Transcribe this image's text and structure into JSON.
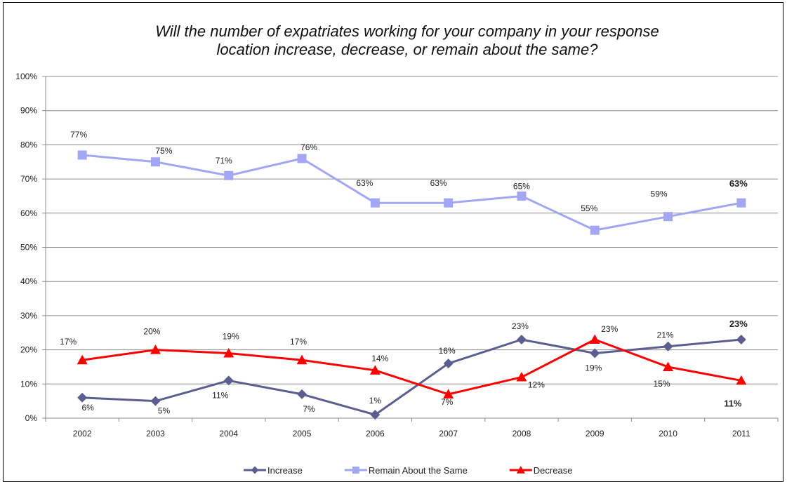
{
  "chart_data": {
    "type": "line",
    "title_line1": "Will the number of expatriates working for your company in your response",
    "title_line2": "location increase, decrease, or remain about the same?",
    "categories": [
      "2002",
      "2003",
      "2004",
      "2005",
      "2006",
      "2007",
      "2008",
      "2009",
      "2010",
      "2011"
    ],
    "y_ticks": [
      "0%",
      "10%",
      "20%",
      "30%",
      "40%",
      "50%",
      "60%",
      "70%",
      "80%",
      "90%",
      "100%"
    ],
    "ylim": [
      0,
      100
    ],
    "grid": true,
    "legend_position": "bottom",
    "series": [
      {
        "name": "Increase",
        "color": "#5b5f8f",
        "marker": "diamond",
        "values": [
          6,
          5,
          11,
          7,
          1,
          16,
          23,
          19,
          21,
          23
        ],
        "labels": [
          "6%",
          "5%",
          "11%",
          "7%",
          "1%",
          "16%",
          "23%",
          "19%",
          "21%",
          "23%"
        ]
      },
      {
        "name": "Remain About the Same",
        "color": "#a3a6f2",
        "marker": "square",
        "values": [
          77,
          75,
          71,
          76,
          63,
          63,
          65,
          55,
          59,
          63
        ],
        "labels": [
          "77%",
          "75%",
          "71%",
          "76%",
          "63%",
          "63%",
          "65%",
          "55%",
          "59%",
          "63%"
        ]
      },
      {
        "name": "Decrease",
        "color": "#ff0000",
        "marker": "triangle",
        "values": [
          17,
          20,
          19,
          17,
          14,
          7,
          12,
          23,
          15,
          11
        ],
        "labels": [
          "17%",
          "20%",
          "19%",
          "17%",
          "14%",
          "7%",
          "12%",
          "23%",
          "15%",
          "11%"
        ]
      }
    ]
  }
}
